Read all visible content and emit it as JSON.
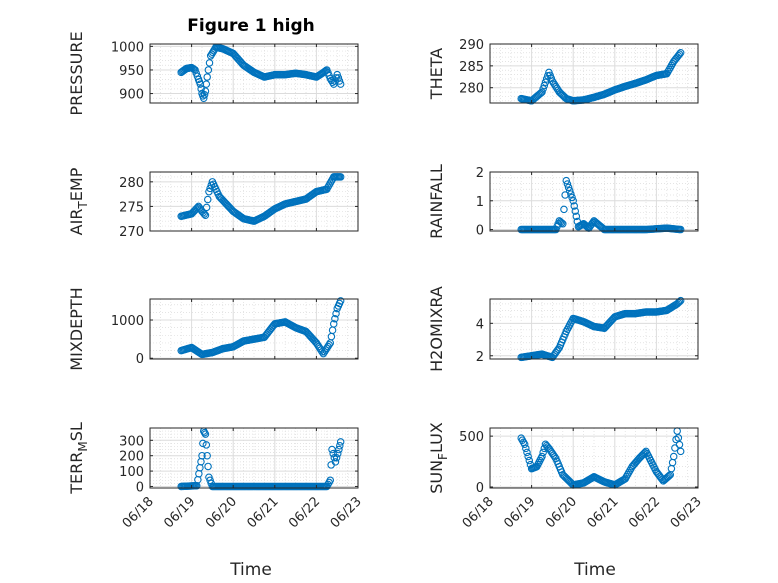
{
  "title": "Figure 1 high",
  "xlabel": "Time",
  "x_ticks": [
    "06/18",
    "06/19",
    "06/20",
    "06/21",
    "06/22",
    "06/23"
  ],
  "colors": {
    "marker": "#0072BD",
    "grid": "#DCDCDC",
    "axis": "#262626"
  },
  "chart_data": [
    {
      "type": "scatter",
      "ylabel": "PRESSURE",
      "ylabel_sub": "",
      "ylim": [
        880,
        1005
      ],
      "yticks": [
        900,
        950,
        1000
      ],
      "grid": true,
      "x": [
        "06/18 18:00",
        "06/18 21:00",
        "06/19 00:00",
        "06/19 02:00",
        "06/19 04:00",
        "06/19 05:00",
        "06/19 06:00",
        "06/19 07:00",
        "06/19 08:00",
        "06/19 09:00",
        "06/19 11:00",
        "06/19 14:00",
        "06/19 18:00",
        "06/20 00:00",
        "06/20 06:00",
        "06/20 12:00",
        "06/20 18:00",
        "06/21 00:00",
        "06/21 06:00",
        "06/21 12:00",
        "06/21 18:00",
        "06/22 00:00",
        "06/22 03:00",
        "06/22 06:00",
        "06/22 08:00",
        "06/22 10:00",
        "06/22 12:00",
        "06/22 14:00"
      ],
      "y": [
        945,
        953,
        955,
        950,
        930,
        920,
        900,
        890,
        905,
        935,
        980,
        998,
        995,
        985,
        960,
        945,
        935,
        940,
        940,
        943,
        940,
        935,
        942,
        950,
        932,
        920,
        940,
        920
      ]
    },
    {
      "type": "scatter",
      "ylabel": "THETA",
      "ylabel_sub": "",
      "ylim": [
        276.5,
        290
      ],
      "yticks": [
        280,
        285,
        290
      ],
      "grid": true,
      "x": [
        "06/18 18:00",
        "06/19 00:00",
        "06/19 06:00",
        "06/19 10:00",
        "06/19 12:00",
        "06/19 16:00",
        "06/19 20:00",
        "06/20 00:00",
        "06/20 06:00",
        "06/20 12:00",
        "06/20 18:00",
        "06/21 00:00",
        "06/21 06:00",
        "06/21 12:00",
        "06/21 18:00",
        "06/22 00:00",
        "06/22 06:00",
        "06/22 10:00",
        "06/22 14:00"
      ],
      "y": [
        277.5,
        277,
        279,
        283.5,
        281.5,
        279,
        277.5,
        277,
        277.2,
        277.8,
        278.5,
        279.5,
        280.3,
        281,
        281.8,
        282.8,
        283.2,
        286,
        288
      ]
    },
    {
      "type": "scatter",
      "ylabel": "AIR",
      "ylabel_sub": "T",
      "ylabel_suffix": "EMP",
      "ylim": [
        270,
        282
      ],
      "yticks": [
        270,
        275,
        280
      ],
      "grid": true,
      "x": [
        "06/18 18:00",
        "06/19 00:00",
        "06/19 04:00",
        "06/19 06:00",
        "06/19 08:00",
        "06/19 10:00",
        "06/19 12:00",
        "06/19 16:00",
        "06/19 20:00",
        "06/20 00:00",
        "06/20 06:00",
        "06/20 12:00",
        "06/20 18:00",
        "06/21 00:00",
        "06/21 06:00",
        "06/21 12:00",
        "06/21 18:00",
        "06/22 00:00",
        "06/22 06:00",
        "06/22 10:00",
        "06/22 14:00"
      ],
      "y": [
        273,
        273.5,
        275,
        274,
        273.2,
        278,
        280,
        277,
        275.5,
        274,
        272.5,
        272,
        273,
        274.5,
        275.5,
        276,
        276.5,
        278,
        278.5,
        281,
        281
      ]
    },
    {
      "type": "scatter",
      "ylabel": "RAINFALL",
      "ylabel_sub": "",
      "ylim": [
        -0.05,
        2
      ],
      "yticks": [
        0,
        1,
        2
      ],
      "grid": true,
      "x": [
        "06/18 18:00",
        "06/19 06:00",
        "06/19 14:00",
        "06/19 16:00",
        "06/19 18:00",
        "06/19 20:00",
        "06/19 22:00",
        "06/20 00:00",
        "06/20 03:00",
        "06/20 06:00",
        "06/20 09:00",
        "06/20 12:00",
        "06/20 18:00",
        "06/21 06:00",
        "06/21 18:00",
        "06/22 06:00",
        "06/22 14:00"
      ],
      "y": [
        0,
        0,
        0,
        0.3,
        0.2,
        1.7,
        1.35,
        1.0,
        0.1,
        0.2,
        0.05,
        0.3,
        0,
        0,
        0,
        0.05,
        0
      ]
    },
    {
      "type": "scatter",
      "ylabel": "MIXDEPTH",
      "ylabel_sub": "",
      "ylim": [
        -20,
        1550
      ],
      "yticks": [
        0,
        1000
      ],
      "grid": true,
      "x": [
        "06/18 18:00",
        "06/19 00:00",
        "06/19 06:00",
        "06/19 12:00",
        "06/19 18:00",
        "06/20 00:00",
        "06/20 06:00",
        "06/20 12:00",
        "06/20 18:00",
        "06/21 00:00",
        "06/21 06:00",
        "06/21 12:00",
        "06/21 18:00",
        "06/22 00:00",
        "06/22 04:00",
        "06/22 08:00",
        "06/22 10:00",
        "06/22 12:00",
        "06/22 14:00"
      ],
      "y": [
        200,
        280,
        100,
        150,
        250,
        300,
        450,
        500,
        550,
        900,
        950,
        800,
        700,
        400,
        120,
        400,
        900,
        1300,
        1500
      ]
    },
    {
      "type": "scatter",
      "ylabel": "H2OMIXRA",
      "ylabel_sub": "",
      "ylim": [
        1.8,
        5.5
      ],
      "yticks": [
        2,
        4
      ],
      "grid": true,
      "x": [
        "06/18 18:00",
        "06/19 00:00",
        "06/19 06:00",
        "06/19 12:00",
        "06/19 16:00",
        "06/19 20:00",
        "06/20 00:00",
        "06/20 06:00",
        "06/20 12:00",
        "06/20 18:00",
        "06/21 00:00",
        "06/21 06:00",
        "06/21 12:00",
        "06/21 18:00",
        "06/22 00:00",
        "06/22 06:00",
        "06/22 12:00",
        "06/22 14:00"
      ],
      "y": [
        1.9,
        2.0,
        2.1,
        1.9,
        2.5,
        3.5,
        4.3,
        4.1,
        3.8,
        3.7,
        4.4,
        4.6,
        4.6,
        4.7,
        4.7,
        4.8,
        5.2,
        5.4
      ]
    },
    {
      "type": "scatter",
      "ylabel": "TERR",
      "ylabel_sub": "M",
      "ylabel_suffix": "SL",
      "ylim": [
        -10,
        380
      ],
      "yticks": [
        0,
        100,
        200,
        300
      ],
      "grid": true,
      "x": [
        "06/18 18:00",
        "06/19 03:00",
        "06/19 06:00",
        "06/19 07:00",
        "06/19 08:00",
        "06/19 09:00",
        "06/19 10:00",
        "06/19 12:00",
        "06/20 00:00",
        "06/20 12:00",
        "06/21 00:00",
        "06/21 12:00",
        "06/22 00:00",
        "06/22 06:00",
        "06/22 08:00",
        "06/22 09:00",
        "06/22 11:00",
        "06/22 13:00",
        "06/22 14:00"
      ],
      "y": [
        0,
        5,
        200,
        360,
        340,
        200,
        60,
        0,
        0,
        0,
        0,
        0,
        0,
        0,
        40,
        240,
        160,
        240,
        290
      ]
    },
    {
      "type": "scatter",
      "ylabel": "SUN",
      "ylabel_sub": "F",
      "ylabel_suffix": "LUX",
      "ylim": [
        -10,
        580
      ],
      "yticks": [
        0,
        500
      ],
      "grid": true,
      "x": [
        "06/18 18:00",
        "06/18 20:00",
        "06/18 22:00",
        "06/19 00:00",
        "06/19 03:00",
        "06/19 06:00",
        "06/19 08:00",
        "06/19 10:00",
        "06/19 14:00",
        "06/19 18:00",
        "06/20 00:00",
        "06/20 06:00",
        "06/20 12:00",
        "06/20 18:00",
        "06/21 00:00",
        "06/21 06:00",
        "06/21 10:00",
        "06/21 14:00",
        "06/21 18:00",
        "06/22 00:00",
        "06/22 04:00",
        "06/22 08:00",
        "06/22 10:00",
        "06/22 12:00",
        "06/22 14:00"
      ],
      "y": [
        480,
        420,
        300,
        180,
        200,
        300,
        420,
        380,
        280,
        120,
        20,
        40,
        100,
        50,
        20,
        80,
        200,
        280,
        350,
        150,
        60,
        120,
        300,
        550,
        350
      ]
    }
  ]
}
